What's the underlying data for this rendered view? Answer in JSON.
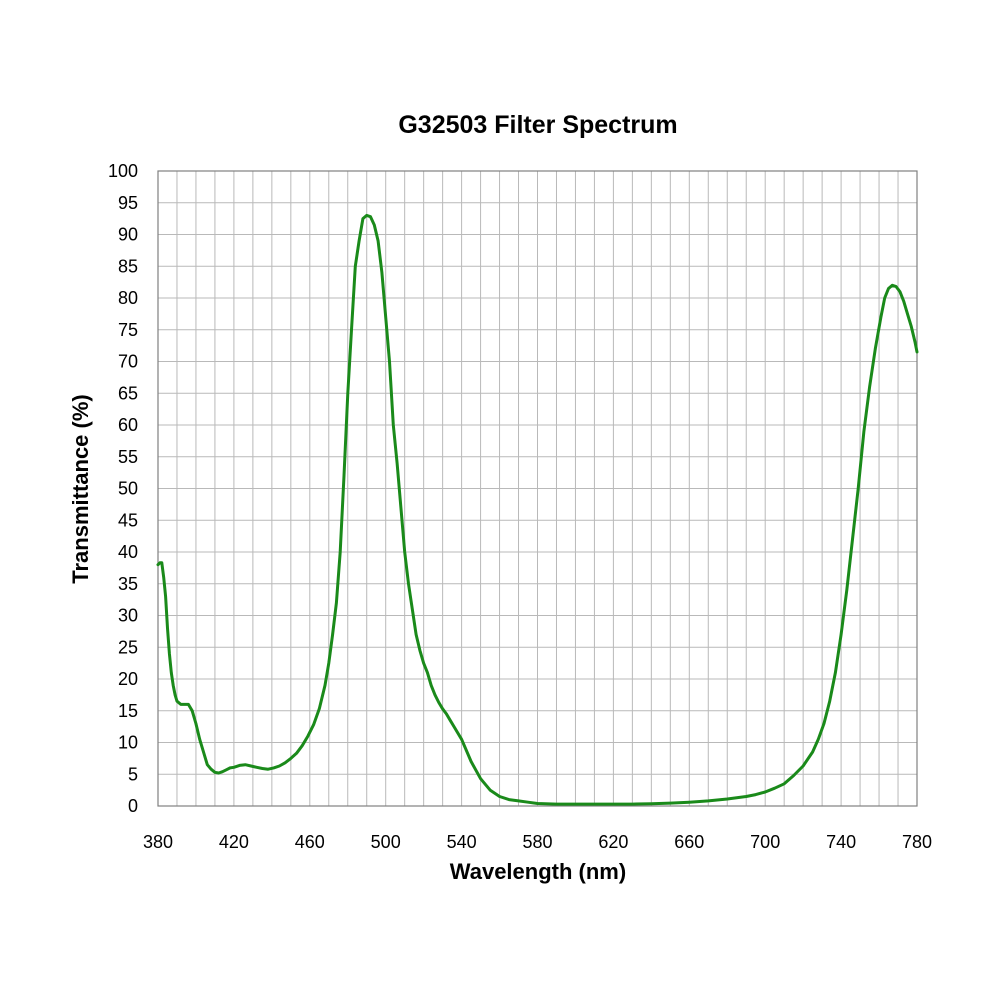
{
  "chart_data": {
    "type": "line",
    "title": "G32503 Filter Spectrum",
    "xlabel": "Wavelength (nm)",
    "ylabel": "Transmittance (%)",
    "xlim": [
      380,
      780
    ],
    "ylim": [
      0,
      100
    ],
    "x_ticks": [
      380,
      420,
      460,
      500,
      540,
      580,
      620,
      660,
      700,
      740,
      780
    ],
    "y_ticks": [
      0,
      5,
      10,
      15,
      20,
      25,
      30,
      35,
      40,
      45,
      50,
      55,
      60,
      65,
      70,
      75,
      80,
      85,
      90,
      95,
      100
    ],
    "grid": true,
    "series": [
      {
        "color": "#1a8a1a",
        "x": [
          380,
          381,
          382,
          383,
          384,
          385,
          386,
          387,
          388,
          389,
          390,
          392,
          394,
          396,
          398,
          400,
          402,
          404,
          406,
          408,
          410,
          412,
          414,
          416,
          418,
          420,
          423,
          426,
          429,
          432,
          435,
          438,
          441,
          444,
          447,
          450,
          453,
          456,
          459,
          462,
          465,
          468,
          470,
          472,
          474,
          476,
          478,
          480,
          482,
          484,
          486,
          488,
          490,
          492,
          494,
          496,
          498,
          500,
          502,
          504,
          506,
          508,
          510,
          512,
          514,
          516,
          518,
          520,
          522,
          524,
          526,
          528,
          530,
          532,
          534,
          536,
          538,
          540,
          545,
          550,
          555,
          560,
          565,
          570,
          575,
          580,
          590,
          600,
          610,
          620,
          630,
          640,
          650,
          660,
          670,
          680,
          690,
          695,
          700,
          705,
          710,
          715,
          720,
          725,
          728,
          731,
          734,
          737,
          740,
          743,
          746,
          749,
          752,
          755,
          758,
          761,
          763,
          765,
          767,
          769,
          771,
          773,
          775,
          777,
          779,
          780
        ],
        "y": [
          38,
          38.3,
          38.3,
          36,
          33,
          28,
          24,
          21,
          19,
          17.5,
          16.5,
          16,
          16,
          16,
          15,
          13,
          10.5,
          8.5,
          6.5,
          5.8,
          5.3,
          5.2,
          5.4,
          5.7,
          6.0,
          6.1,
          6.4,
          6.5,
          6.3,
          6.1,
          5.9,
          5.8,
          6.0,
          6.3,
          6.8,
          7.5,
          8.3,
          9.5,
          11,
          12.8,
          15.3,
          19,
          22.5,
          27,
          32,
          40,
          52,
          65,
          75,
          85,
          89,
          92.5,
          93,
          92.8,
          91.5,
          89,
          84,
          77,
          70,
          60,
          54,
          47,
          40,
          35,
          31,
          27,
          24.5,
          22.5,
          21,
          19,
          17.5,
          16.3,
          15.3,
          14.5,
          13.5,
          12.5,
          11.5,
          10.5,
          7,
          4.3,
          2.5,
          1.5,
          1.0,
          0.8,
          0.6,
          0.4,
          0.3,
          0.3,
          0.3,
          0.3,
          0.3,
          0.35,
          0.45,
          0.6,
          0.8,
          1.1,
          1.5,
          1.8,
          2.2,
          2.8,
          3.5,
          4.8,
          6.3,
          8.5,
          10.5,
          13,
          16.5,
          21,
          27,
          34,
          42,
          50,
          59,
          66,
          72,
          77,
          80,
          81.5,
          82,
          81.8,
          81,
          79.5,
          77.5,
          75.5,
          73,
          71.5
        ]
      }
    ]
  }
}
